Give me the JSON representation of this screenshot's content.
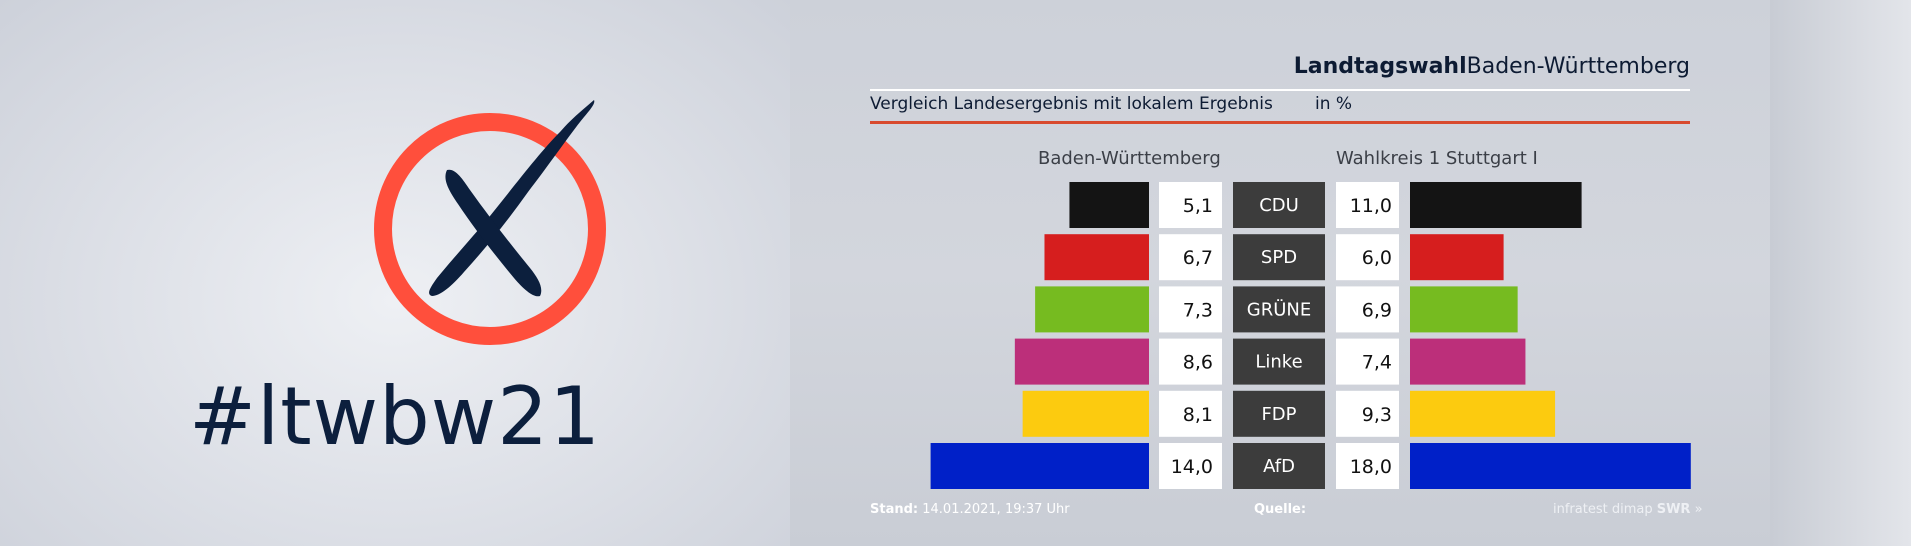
{
  "hashtag": "#ltwbw21",
  "title": {
    "bold": "Landtagswahl",
    "regular": "Baden-Württemberg"
  },
  "subtitle": "Vergleich Landesergebnis mit lokalem Ergebnis",
  "unit": "in %",
  "footer": {
    "stand_label": "Stand:",
    "stand_value": "14.01.2021, 19:37 Uhr",
    "quelle_label": "Quelle:",
    "source": "infratest dimap",
    "brand": "SWR"
  },
  "colors": {
    "logo_ring": "#ff4f3c",
    "logo_cross": "#0c1f3d",
    "party_box": "#3c3c3c"
  },
  "chart_data": {
    "type": "bar",
    "orientation": "horizontal-butterfly",
    "categories": [
      "CDU",
      "SPD",
      "GRÜNE",
      "Linke",
      "FDP",
      "AfD"
    ],
    "category_colors": [
      "#141414",
      "#d61e1e",
      "#76bb20",
      "#bc2f7a",
      "#fccb0f",
      "#0020c8"
    ],
    "series": [
      {
        "name": "Baden-Württemberg",
        "values": [
          5.1,
          6.7,
          7.3,
          8.6,
          8.1,
          14.0
        ]
      },
      {
        "name": "Wahlkreis 1 Stuttgart I",
        "values": [
          11.0,
          6.0,
          6.9,
          7.4,
          9.3,
          18.0
        ]
      }
    ],
    "value_labels": [
      [
        "5,1",
        "6,7",
        "7,3",
        "8,6",
        "8,1",
        "14,0"
      ],
      [
        "11,0",
        "6,0",
        "6,9",
        "7,4",
        "9,3",
        "18,0"
      ]
    ],
    "xlim": [
      0,
      18
    ]
  }
}
